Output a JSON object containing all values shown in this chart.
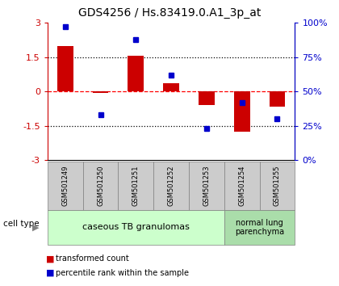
{
  "title": "GDS4256 / Hs.83419.0.A1_3p_at",
  "samples": [
    "GSM501249",
    "GSM501250",
    "GSM501251",
    "GSM501252",
    "GSM501253",
    "GSM501254",
    "GSM501255"
  ],
  "transformed_count": [
    2.0,
    -0.05,
    1.55,
    0.35,
    -0.6,
    -1.75,
    -0.65
  ],
  "percentile_rank": [
    97,
    33,
    88,
    62,
    23,
    42,
    30
  ],
  "ylim_left": [
    -3,
    3
  ],
  "ylim_right": [
    0,
    100
  ],
  "yticks_left": [
    -3,
    -1.5,
    0,
    1.5,
    3
  ],
  "yticks_right": [
    0,
    25,
    50,
    75,
    100
  ],
  "ytick_labels_left": [
    "-3",
    "-1.5",
    "0",
    "1.5",
    "3"
  ],
  "ytick_labels_right": [
    "0%",
    "25%",
    "50%",
    "75%",
    "100%"
  ],
  "hlines": [
    -1.5,
    0,
    1.5
  ],
  "hline_styles": [
    "dotted",
    "dashed",
    "dotted"
  ],
  "hline_colors": [
    "black",
    "red",
    "black"
  ],
  "bar_color": "#cc0000",
  "dot_color": "#0000cc",
  "group1_count": 5,
  "group2_count": 2,
  "group1_label": "caseous TB granulomas",
  "group2_label": "normal lung\nparenchyma",
  "group1_color": "#ccffcc",
  "group2_color": "#aaddaa",
  "cell_type_label": "cell type",
  "legend_bar_label": "transformed count",
  "legend_dot_label": "percentile rank within the sample",
  "sample_box_color": "#cccccc",
  "background_color": "#ffffff",
  "bar_width": 0.45
}
